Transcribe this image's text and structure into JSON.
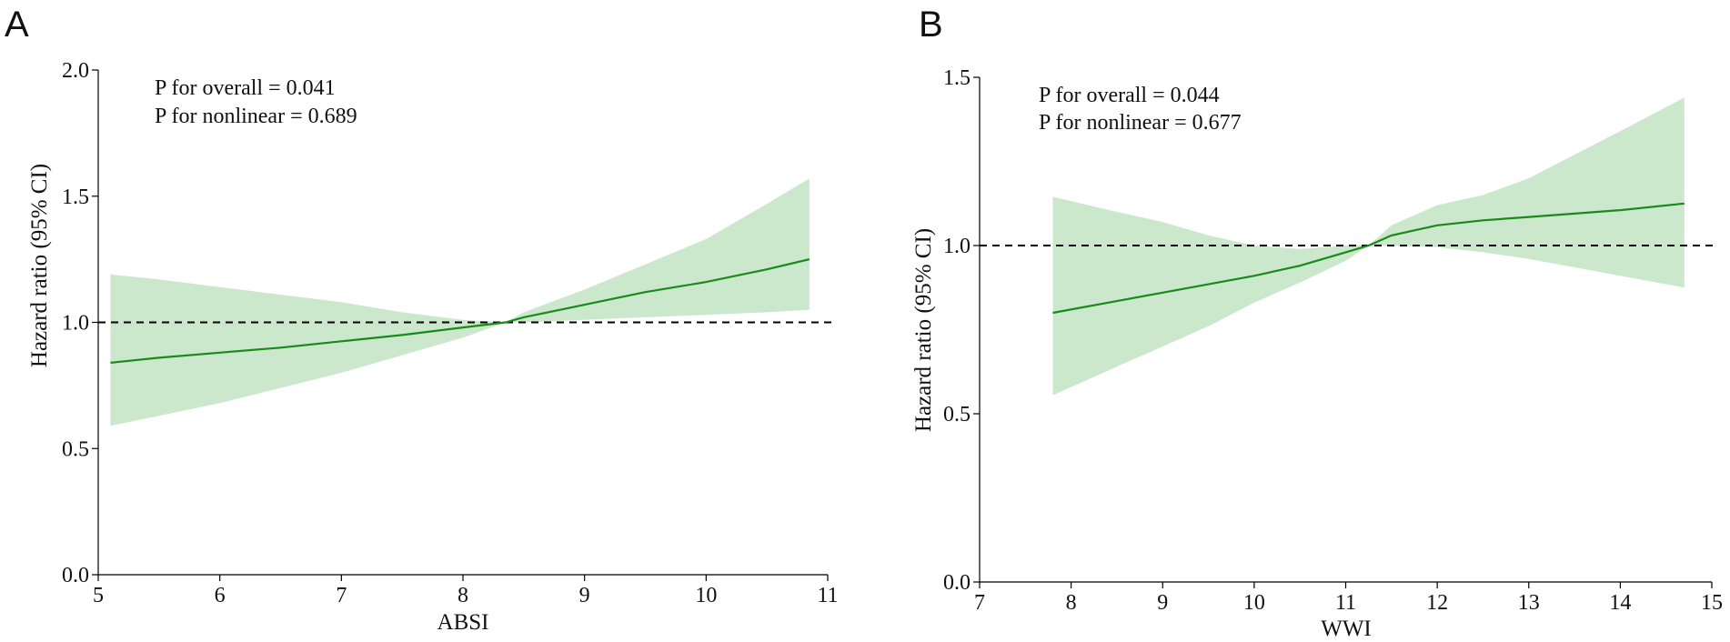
{
  "chart_data": [
    {
      "panel": "A",
      "type": "line",
      "xlabel": "ABSI",
      "ylabel": "Hazard ratio (95% CI)",
      "xlim": [
        5,
        11
      ],
      "ylim": [
        0.0,
        2.0
      ],
      "xticks": [
        "5",
        "6",
        "7",
        "8",
        "9",
        "10",
        "11"
      ],
      "yticks": [
        "0.0",
        "0.5",
        "1.0",
        "1.5",
        "2.0"
      ],
      "reference_line": 1.0,
      "annotations": [
        "P for overall = 0.041",
        "P for nonlinear = 0.689"
      ],
      "colors": {
        "line": "#1a8a1a",
        "band": "#cce8cc",
        "reference": "#000000"
      },
      "series": [
        {
          "name": "Hazard ratio",
          "x": [
            5.1,
            5.5,
            6.0,
            6.5,
            7.0,
            7.5,
            8.0,
            8.35,
            8.5,
            9.0,
            9.5,
            10.0,
            10.5,
            10.85
          ],
          "y": [
            0.84,
            0.86,
            0.88,
            0.9,
            0.925,
            0.95,
            0.98,
            1.0,
            1.02,
            1.07,
            1.12,
            1.16,
            1.21,
            1.25
          ],
          "lower": [
            0.59,
            0.63,
            0.68,
            0.74,
            0.8,
            0.87,
            0.94,
            1.0,
            1.0,
            1.01,
            1.02,
            1.03,
            1.04,
            1.05
          ],
          "upper": [
            1.19,
            1.17,
            1.14,
            1.11,
            1.08,
            1.04,
            1.01,
            1.0,
            1.04,
            1.13,
            1.23,
            1.33,
            1.47,
            1.57
          ]
        }
      ]
    },
    {
      "panel": "B",
      "type": "line",
      "xlabel": "WWI",
      "ylabel": "Hazard ratio (95% CI)",
      "xlim": [
        7,
        15
      ],
      "ylim": [
        0.0,
        1.5
      ],
      "xticks": [
        "7",
        "8",
        "9",
        "10",
        "11",
        "12",
        "13",
        "14",
        "15"
      ],
      "yticks": [
        "0.0",
        "0.5",
        "1.0",
        "1.5"
      ],
      "reference_line": 1.0,
      "annotations": [
        "P for overall = 0.044",
        "P for nonlinear = 0.677"
      ],
      "colors": {
        "line": "#1a8a1a",
        "band": "#cce8cc",
        "reference": "#000000"
      },
      "series": [
        {
          "name": "Hazard ratio",
          "x": [
            7.8,
            8.5,
            9.0,
            9.5,
            10.0,
            10.5,
            11.0,
            11.25,
            11.5,
            12.0,
            12.5,
            13.0,
            13.5,
            14.0,
            14.7
          ],
          "y": [
            0.8,
            0.835,
            0.86,
            0.885,
            0.91,
            0.94,
            0.98,
            1.0,
            1.03,
            1.06,
            1.075,
            1.085,
            1.095,
            1.105,
            1.125
          ],
          "lower": [
            0.555,
            0.64,
            0.7,
            0.76,
            0.83,
            0.89,
            0.955,
            1.0,
            1.0,
            0.995,
            0.98,
            0.96,
            0.935,
            0.91,
            0.875
          ],
          "upper": [
            1.145,
            1.1,
            1.07,
            1.03,
            1.0,
            0.99,
            1.0,
            1.0,
            1.06,
            1.12,
            1.15,
            1.2,
            1.27,
            1.34,
            1.44
          ]
        }
      ]
    }
  ]
}
